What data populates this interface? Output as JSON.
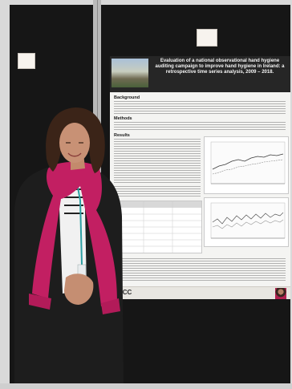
{
  "poster": {
    "title": "Evaluation of a national observational hand hygiene auditing campaign to improve hand hygiene in Ireland: a retrospective time series analysis, 2009 – 2018.",
    "sections": {
      "background": "Background",
      "methods": "Methods",
      "results": "Results"
    },
    "footer_logo": "UCC"
  }
}
